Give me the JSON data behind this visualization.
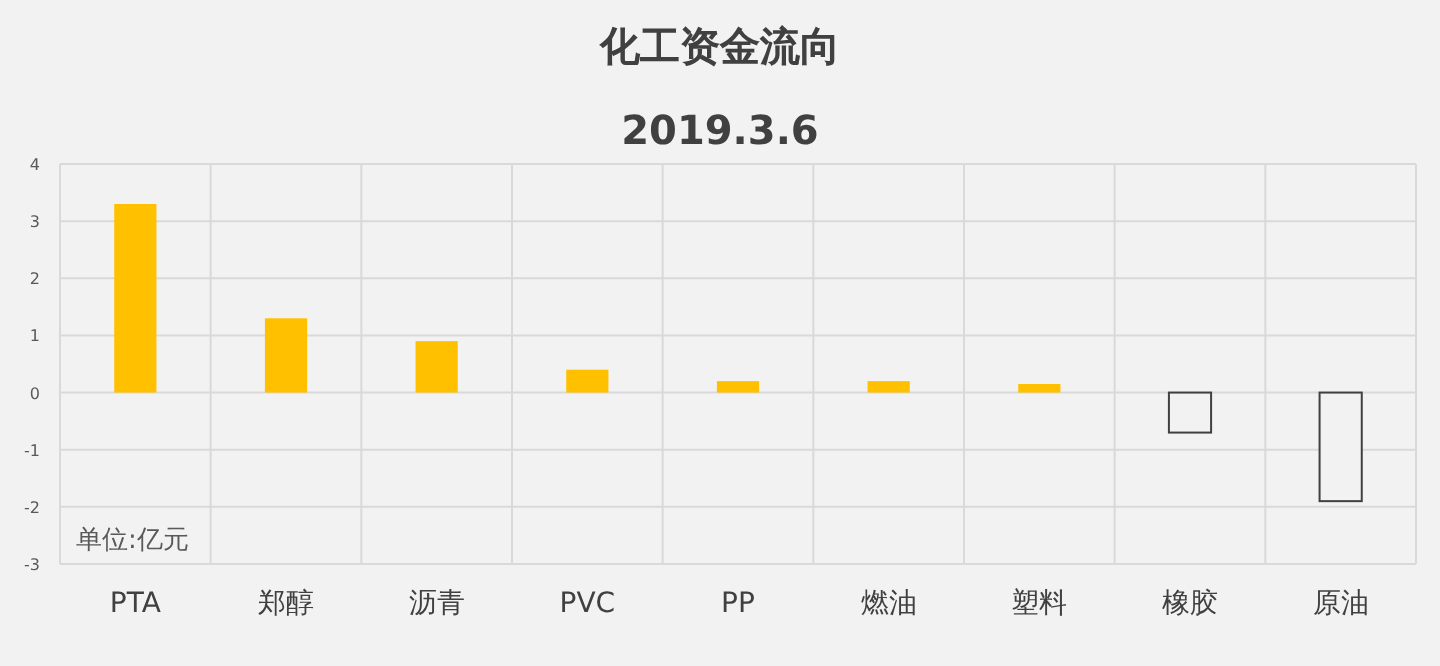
{
  "chart_data": {
    "type": "bar",
    "title": "化工资金流向",
    "subtitle": "2019.3.6",
    "categories": [
      "PTA",
      "郑醇",
      "沥青",
      "PVC",
      "PP",
      "燃油",
      "塑料",
      "橡胶",
      "原油"
    ],
    "values": [
      3.3,
      1.3,
      0.9,
      0.4,
      0.2,
      0.2,
      0.15,
      -0.7,
      -1.9
    ],
    "colors": [
      "#ffc000",
      "#ffc000",
      "#ffc000",
      "#ffc000",
      "#ffc000",
      "#ffc000",
      "#ffc000",
      "#f2f2f2",
      "#f2f2f2"
    ],
    "ylim": [
      -3,
      4
    ],
    "yticks": [
      -3,
      -2,
      -1,
      0,
      1,
      2,
      3,
      4
    ],
    "grid": true,
    "annotations": [
      "单位:亿元"
    ]
  }
}
